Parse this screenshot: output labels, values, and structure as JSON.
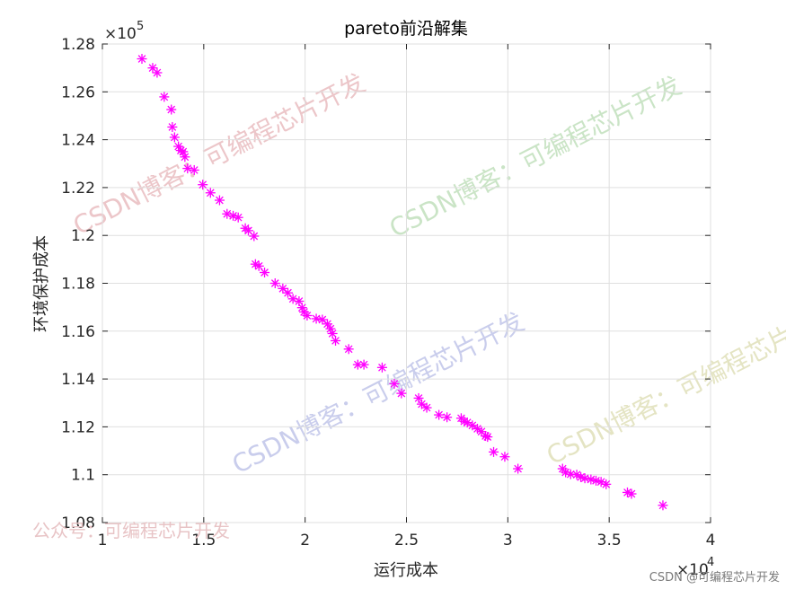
{
  "chart_data": {
    "type": "scatter",
    "title": "pareto前沿解集",
    "xlabel": "运行成本",
    "ylabel": "环境保护成本",
    "xlim": [
      10000,
      40000
    ],
    "ylim": [
      108000,
      128000
    ],
    "x_exponent_label": "×10",
    "x_exponent_power": "4",
    "y_exponent_label": "×10",
    "y_exponent_power": "5",
    "x_ticks": [
      {
        "value": 10000,
        "label": "1"
      },
      {
        "value": 15000,
        "label": "1.5"
      },
      {
        "value": 20000,
        "label": "2"
      },
      {
        "value": 25000,
        "label": "2.5"
      },
      {
        "value": 30000,
        "label": "3"
      },
      {
        "value": 35000,
        "label": "3.5"
      },
      {
        "value": 40000,
        "label": "4"
      }
    ],
    "y_ticks": [
      {
        "value": 108000,
        "label": "1.08"
      },
      {
        "value": 110000,
        "label": "1.1"
      },
      {
        "value": 112000,
        "label": "1.12"
      },
      {
        "value": 114000,
        "label": "1.14"
      },
      {
        "value": 116000,
        "label": "1.16"
      },
      {
        "value": 118000,
        "label": "1.18"
      },
      {
        "value": 120000,
        "label": "1.2"
      },
      {
        "value": 122000,
        "label": "1.22"
      },
      {
        "value": 124000,
        "label": "1.24"
      },
      {
        "value": 126000,
        "label": "1.26"
      },
      {
        "value": 128000,
        "label": "1.28"
      }
    ],
    "grid": true,
    "marker": "*",
    "color": "#ff00ff",
    "series": [
      {
        "points": [
          [
            11950,
            127380
          ],
          [
            12480,
            127000
          ],
          [
            12700,
            126800
          ],
          [
            13050,
            125790
          ],
          [
            13400,
            125260
          ],
          [
            13450,
            124530
          ],
          [
            13560,
            124100
          ],
          [
            13750,
            123720
          ],
          [
            13870,
            123550
          ],
          [
            13980,
            123500
          ],
          [
            14070,
            123280
          ],
          [
            14200,
            122800
          ],
          [
            14530,
            122730
          ],
          [
            14950,
            122120
          ],
          [
            15330,
            121780
          ],
          [
            15780,
            121470
          ],
          [
            16150,
            120900
          ],
          [
            16450,
            120820
          ],
          [
            16700,
            120750
          ],
          [
            17050,
            120300
          ],
          [
            17200,
            120200
          ],
          [
            17480,
            119970
          ],
          [
            17550,
            118800
          ],
          [
            17720,
            118720
          ],
          [
            18000,
            118450
          ],
          [
            18520,
            118000
          ],
          [
            18900,
            117780
          ],
          [
            19150,
            117600
          ],
          [
            19400,
            117350
          ],
          [
            19700,
            117250
          ],
          [
            19850,
            116980
          ],
          [
            19950,
            116800
          ],
          [
            20100,
            116650
          ],
          [
            20550,
            116520
          ],
          [
            20850,
            116480
          ],
          [
            21100,
            116300
          ],
          [
            21250,
            116100
          ],
          [
            21350,
            115900
          ],
          [
            21500,
            115600
          ],
          [
            22150,
            115250
          ],
          [
            22600,
            114600
          ],
          [
            22900,
            114600
          ],
          [
            23800,
            114480
          ],
          [
            24400,
            113800
          ],
          [
            24750,
            113400
          ],
          [
            25600,
            113200
          ],
          [
            25750,
            112950
          ],
          [
            26000,
            112800
          ],
          [
            26600,
            112500
          ],
          [
            27000,
            112400
          ],
          [
            27700,
            112360
          ],
          [
            27850,
            112230
          ],
          [
            28000,
            112180
          ],
          [
            28250,
            112060
          ],
          [
            28500,
            111920
          ],
          [
            28700,
            111800
          ],
          [
            28900,
            111620
          ],
          [
            29000,
            111580
          ],
          [
            29300,
            110950
          ],
          [
            29850,
            110750
          ],
          [
            30500,
            110250
          ],
          [
            32700,
            110250
          ],
          [
            32850,
            110100
          ],
          [
            33100,
            110020
          ],
          [
            33400,
            110000
          ],
          [
            33600,
            109900
          ],
          [
            33800,
            109850
          ],
          [
            34100,
            109800
          ],
          [
            34350,
            109750
          ],
          [
            34600,
            109700
          ],
          [
            34850,
            109600
          ],
          [
            35900,
            109260
          ],
          [
            36100,
            109200
          ],
          [
            37650,
            108720
          ]
        ]
      }
    ]
  },
  "watermarks": [
    {
      "text": "CSDN博客：可编程芯片开发",
      "color": "#e6b4b8"
    },
    {
      "text": "CSDN博客：可编程芯片开发",
      "color": "#b9dcb3"
    },
    {
      "text": "CSDN博客：可编程芯片开发",
      "color": "#b8bde6"
    },
    {
      "text": "CSDN博客：可编程芯片开发",
      "color": "#dcdcb0"
    }
  ],
  "footer": {
    "left": "公众号：可编程芯片开发",
    "right": "CSDN @可编程芯片开发"
  }
}
